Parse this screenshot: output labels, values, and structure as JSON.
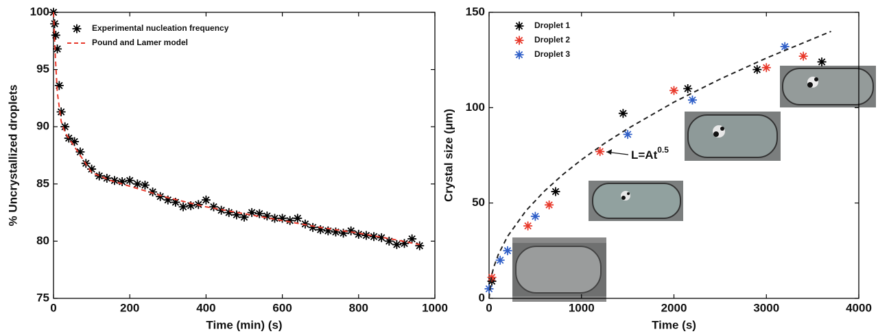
{
  "chart_data": [
    {
      "type": "scatter",
      "xlabel": "Time (min) (s)",
      "ylabel": "% Uncrystallized droplets",
      "xlim": [
        0,
        1000
      ],
      "ylim": [
        75,
        100
      ],
      "xticks": [
        0,
        200,
        400,
        600,
        800,
        1000
      ],
      "yticks": [
        75,
        80,
        85,
        90,
        95,
        100
      ],
      "legend": "upper left",
      "series": [
        {
          "name": "Experimental nucleation frequency",
          "color": "#000000",
          "mode": "markers",
          "x": [
            0,
            3,
            6,
            10,
            15,
            20,
            30,
            40,
            55,
            70,
            85,
            100,
            120,
            140,
            160,
            180,
            200,
            220,
            240,
            260,
            280,
            300,
            320,
            340,
            360,
            380,
            400,
            420,
            440,
            460,
            480,
            500,
            520,
            540,
            560,
            580,
            600,
            620,
            640,
            660,
            680,
            700,
            720,
            740,
            760,
            780,
            800,
            820,
            840,
            860,
            880,
            900,
            920,
            940,
            960
          ],
          "values": [
            100,
            99,
            98,
            96.8,
            93.6,
            91.3,
            90,
            89,
            88.7,
            87.8,
            86.8,
            86.3,
            85.7,
            85.5,
            85.3,
            85.2,
            85.3,
            85,
            84.9,
            84.3,
            83.9,
            83.6,
            83.4,
            83,
            83.1,
            83.2,
            83.6,
            83,
            82.7,
            82.5,
            82.3,
            82.1,
            82.5,
            82.4,
            82.2,
            82,
            82,
            81.8,
            82,
            81.5,
            81.2,
            81,
            80.9,
            80.8,
            80.7,
            80.9,
            80.6,
            80.5,
            80.4,
            80.3,
            80,
            79.7,
            79.8,
            80.2,
            79.6
          ]
        },
        {
          "name": "Pound and Lamer model",
          "color": "#e8382a",
          "mode": "dashed-line",
          "x": [
            0,
            5,
            10,
            20,
            30,
            50,
            100,
            150,
            200,
            300,
            400,
            500,
            600,
            700,
            800,
            900,
            960
          ],
          "values": [
            100,
            96,
            93,
            90.5,
            89.5,
            88.5,
            86,
            85.3,
            84.8,
            83.8,
            83,
            82.4,
            81.8,
            81.2,
            80.7,
            80.1,
            79.7
          ]
        }
      ]
    },
    {
      "type": "scatter",
      "xlabel": "Time (s)",
      "ylabel": "Crystal size (μm)",
      "xlim": [
        0,
        4000
      ],
      "ylim": [
        0,
        150
      ],
      "xticks": [
        0,
        1000,
        2000,
        3000,
        4000
      ],
      "yticks": [
        0,
        50,
        100,
        150
      ],
      "legend": "upper left",
      "annotation": {
        "text": "L=At",
        "superscript": "0.5"
      },
      "series": [
        {
          "name": "Droplet 1",
          "color": "#000000",
          "mode": "markers",
          "x": [
            30,
            720,
            1450,
            2150,
            2900,
            3600
          ],
          "values": [
            9,
            56,
            97,
            110,
            120,
            124
          ]
        },
        {
          "name": "Droplet 2",
          "color": "#e8382a",
          "mode": "markers",
          "x": [
            30,
            420,
            650,
            1200,
            2000,
            3000,
            3400
          ],
          "values": [
            11,
            38,
            49,
            77,
            109,
            121,
            127
          ]
        },
        {
          "name": "Droplet 3",
          "color": "#2f5fc8",
          "mode": "markers",
          "x": [
            0,
            120,
            200,
            500,
            1500,
            2200,
            3200
          ],
          "values": [
            5,
            20,
            25,
            43,
            86,
            104,
            132
          ]
        },
        {
          "color": "#222222",
          "mode": "dashed-line",
          "x": [
            0,
            25,
            50,
            100,
            200,
            400,
            600,
            800,
            1000,
            1250,
            1500,
            2000,
            2500,
            3000,
            3500,
            3700
          ],
          "values": [
            0,
            11.5,
            16.3,
            23,
            32.5,
            46,
            56.3,
            65,
            72.7,
            81.3,
            89,
            102.9,
            115,
            126,
            136,
            140
          ]
        }
      ]
    }
  ]
}
